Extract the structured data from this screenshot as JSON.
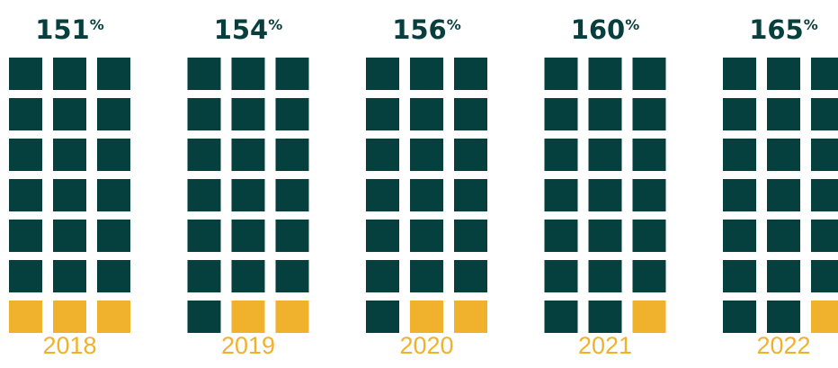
{
  "chart_data": {
    "type": "waffle",
    "categories": [
      "2018",
      "2019",
      "2020",
      "2021",
      "2022"
    ],
    "values": [
      151,
      154,
      156,
      160,
      165
    ],
    "unit": "%",
    "filled": [
      18,
      19,
      19,
      20,
      20
    ],
    "total": 21,
    "columns": 3,
    "color": "#053f3e",
    "rest_color": "#f0b22c"
  }
}
